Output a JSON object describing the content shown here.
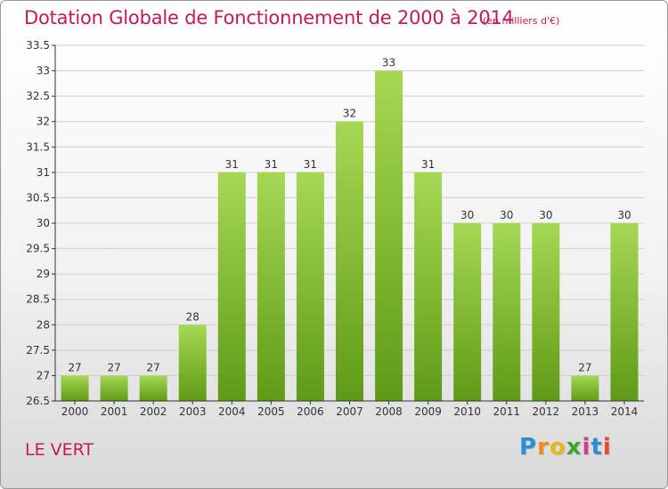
{
  "header": {
    "title": "Dotation Globale de Fonctionnement de 2000 à 2014",
    "subtitle": "(en milliers d'€)"
  },
  "footer": {
    "commune": "LE VERT",
    "logo_text": "Proxiti"
  },
  "colors": {
    "title": "#c8185a",
    "bar_top": "#a6d854",
    "bar_bottom": "#5f9a16",
    "grid": "#cfcfcf",
    "axis": "#333333"
  },
  "chart_data": {
    "type": "bar",
    "title": "Dotation Globale de Fonctionnement de 2000 à 2014",
    "subtitle": "(en milliers d'€)",
    "categories": [
      "2000",
      "2001",
      "2002",
      "2003",
      "2004",
      "2005",
      "2006",
      "2007",
      "2008",
      "2009",
      "2010",
      "2011",
      "2012",
      "2013",
      "2014"
    ],
    "values": [
      27,
      27,
      27,
      28,
      31,
      31,
      31,
      32,
      33,
      31,
      30,
      30,
      30,
      27,
      30
    ],
    "data_labels": [
      "27",
      "27",
      "27",
      "28",
      "31",
      "31",
      "31",
      "32",
      "33",
      "31",
      "30",
      "30",
      "30",
      "27",
      "30"
    ],
    "ylim": [
      26.5,
      33.5
    ],
    "yticks": [
      "26.5",
      "27",
      "27.5",
      "28",
      "28.5",
      "29",
      "29.5",
      "30",
      "30.5",
      "31",
      "31.5",
      "32",
      "32.5",
      "33",
      "33.5"
    ],
    "grid": true,
    "xlabel": "",
    "ylabel": ""
  }
}
